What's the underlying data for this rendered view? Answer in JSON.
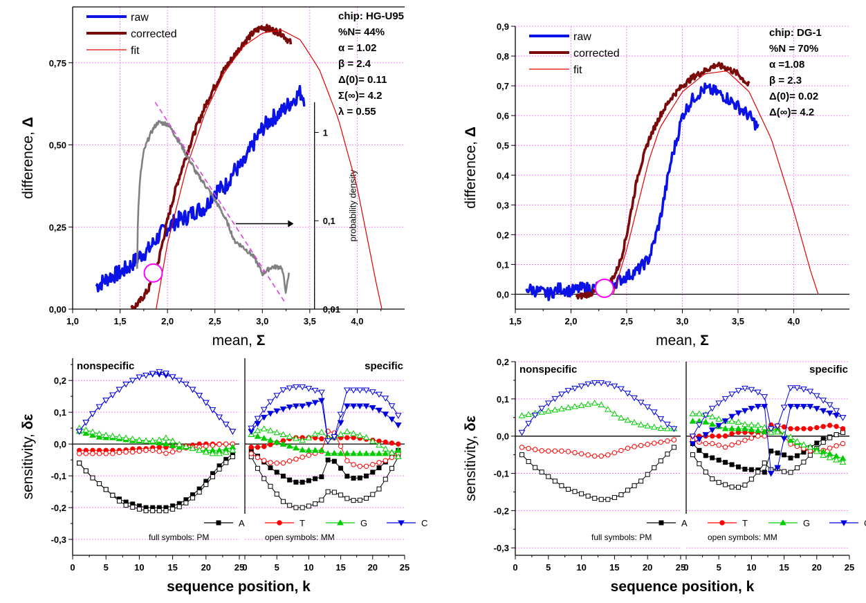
{
  "chart_data": [
    {
      "id": "p1",
      "type": "line",
      "xlabel": "mean, ",
      "xlabel_sym": "Σ",
      "ylabel": "difference, ",
      "ylabel_sym": "Δ",
      "y2label": "probability density",
      "xlim": [
        1.0,
        4.5
      ],
      "ylim": [
        0.0,
        0.92
      ],
      "xticks": [
        "1,0",
        "1,5",
        "2,0",
        "2,5",
        "3,0",
        "3,5",
        "4,0"
      ],
      "xtick_vals": [
        1.0,
        1.5,
        2.0,
        2.5,
        3.0,
        3.5,
        4.0
      ],
      "yticks": [
        "0,00",
        "0,25",
        "0,50",
        "0,75"
      ],
      "ytick_vals": [
        0.0,
        0.25,
        0.5,
        0.75
      ],
      "y2ticks": [
        "0,01",
        "0,1",
        "1"
      ],
      "y2tick_vals": [
        0.01,
        0.1,
        1
      ],
      "y2log": true,
      "y2lim": [
        0.01,
        2.2
      ],
      "annotation": [
        "chip: HG-U95",
        "%N= 44%",
        "α    = 1.02",
        "β    = 2.4",
        "Δ(0)= 0.11",
        "Σ(∞)= 4.2",
        "λ    = 0.55"
      ],
      "legend": [
        "raw",
        "corrected",
        "fit"
      ],
      "colors": {
        "raw": "#0a12e6",
        "corrected": "#7a0a0a",
        "fit": "#e00000",
        "density": "#808080",
        "tangent": "#e040e0",
        "circle": "#ff00ff"
      },
      "series": [
        {
          "name": "raw",
          "x": [
            1.25,
            1.4,
            1.5,
            1.6,
            1.7,
            1.8,
            1.9,
            2.0,
            2.1,
            2.2,
            2.3,
            2.4,
            2.5,
            2.6,
            2.7,
            2.8,
            2.9,
            3.0,
            3.1,
            3.2,
            3.3,
            3.4,
            3.45
          ],
          "y": [
            0.07,
            0.1,
            0.11,
            0.13,
            0.16,
            0.18,
            0.22,
            0.25,
            0.27,
            0.28,
            0.3,
            0.31,
            0.36,
            0.37,
            0.42,
            0.44,
            0.5,
            0.55,
            0.58,
            0.6,
            0.63,
            0.66,
            0.64
          ],
          "noise": 0.025
        },
        {
          "name": "corrected",
          "x": [
            1.62,
            1.7,
            1.8,
            1.9,
            2.0,
            2.1,
            2.2,
            2.3,
            2.4,
            2.5,
            2.6,
            2.7,
            2.8,
            2.9,
            3.0,
            3.1,
            3.2,
            3.3
          ],
          "y": [
            0.0,
            0.02,
            0.06,
            0.14,
            0.27,
            0.38,
            0.47,
            0.55,
            0.62,
            0.68,
            0.73,
            0.77,
            0.81,
            0.84,
            0.86,
            0.85,
            0.84,
            0.81
          ],
          "noise": 0.01
        },
        {
          "name": "fit",
          "x": [
            1.88,
            2.0,
            2.2,
            2.4,
            2.6,
            2.8,
            3.0,
            3.2,
            3.4,
            3.6,
            3.8,
            4.0,
            4.2,
            4.26
          ],
          "y": [
            0.0,
            0.2,
            0.43,
            0.6,
            0.72,
            0.8,
            0.84,
            0.85,
            0.82,
            0.73,
            0.58,
            0.37,
            0.08,
            0.0
          ],
          "noise": 0
        },
        {
          "name": "probability density",
          "x": [
            1.68,
            1.75,
            1.85,
            1.9,
            2.0,
            2.1,
            2.2,
            2.3,
            2.4,
            2.5,
            2.6,
            2.7,
            2.8,
            2.9,
            3.0,
            3.1,
            3.2,
            3.25,
            3.28
          ],
          "y": [
            0.03,
            0.6,
            1.1,
            1.3,
            1.25,
            0.85,
            0.55,
            0.35,
            0.25,
            0.17,
            0.11,
            0.06,
            0.05,
            0.04,
            0.025,
            0.03,
            0.03,
            0.015,
            0.025
          ],
          "axis": "y2",
          "noise": 0.06
        }
      ]
    },
    {
      "id": "p2",
      "type": "line",
      "xlabel": "mean, ",
      "xlabel_sym": "Σ",
      "ylabel": "difference, ",
      "ylabel_sym": "Δ",
      "xlim": [
        1.5,
        4.5
      ],
      "ylim": [
        -0.05,
        0.9
      ],
      "xticks": [
        "1,5",
        "2,0",
        "2,5",
        "3,0",
        "3,5",
        "4,0"
      ],
      "xtick_vals": [
        1.5,
        2.0,
        2.5,
        3.0,
        3.5,
        4.0
      ],
      "yticks": [
        "0,0",
        "0,1",
        "0,2",
        "0,3",
        "0,4",
        "0,5",
        "0,6",
        "0,7",
        "0,8",
        "0,9"
      ],
      "ytick_vals": [
        0,
        0.1,
        0.2,
        0.3,
        0.4,
        0.5,
        0.6,
        0.7,
        0.8,
        0.9
      ],
      "annotation": [
        "chip: DG-1",
        "%N = 70%",
        "α      =1.08",
        "β      = 2.3",
        "Δ(0)= 0.02",
        "Δ(∞)= 4.2"
      ],
      "legend": [
        "raw",
        "corrected",
        "fit"
      ],
      "series": [
        {
          "name": "raw",
          "x": [
            1.6,
            1.7,
            1.8,
            1.9,
            2.0,
            2.1,
            2.2,
            2.3,
            2.4,
            2.5,
            2.6,
            2.7,
            2.75,
            2.8,
            2.85,
            2.9,
            2.95,
            3.0,
            3.1,
            3.2,
            3.3,
            3.4,
            3.5,
            3.6,
            3.68
          ],
          "y": [
            0.02,
            0.01,
            0.0,
            0.02,
            0.01,
            0.02,
            0.02,
            0.03,
            0.04,
            0.06,
            0.08,
            0.12,
            0.18,
            0.25,
            0.35,
            0.45,
            0.52,
            0.6,
            0.66,
            0.69,
            0.68,
            0.66,
            0.63,
            0.6,
            0.56
          ],
          "noise": 0.02
        },
        {
          "name": "corrected",
          "x": [
            2.05,
            2.15,
            2.25,
            2.35,
            2.4,
            2.45,
            2.5,
            2.55,
            2.6,
            2.7,
            2.8,
            2.9,
            3.0,
            3.1,
            3.2,
            3.3,
            3.4,
            3.5,
            3.6
          ],
          "y": [
            -0.01,
            0.0,
            0.01,
            0.04,
            0.07,
            0.12,
            0.2,
            0.3,
            0.4,
            0.52,
            0.6,
            0.66,
            0.7,
            0.73,
            0.75,
            0.77,
            0.76,
            0.74,
            0.7
          ],
          "noise": 0.01
        },
        {
          "name": "fit",
          "x": [
            2.38,
            2.5,
            2.6,
            2.7,
            2.8,
            3.0,
            3.2,
            3.4,
            3.6,
            3.8,
            4.0,
            4.15,
            4.22
          ],
          "y": [
            0.0,
            0.15,
            0.3,
            0.45,
            0.56,
            0.68,
            0.74,
            0.75,
            0.68,
            0.52,
            0.28,
            0.08,
            0.0
          ],
          "noise": 0
        }
      ]
    },
    {
      "id": "p3",
      "type": "line",
      "ylabel": "sensitivity, ",
      "ylabel_sym": "δε",
      "xlabel": "sequence position, k",
      "xlim": [
        0,
        25
      ],
      "ylim": [
        -0.35,
        0.27
      ],
      "xticks": [
        "0",
        "5",
        "10",
        "15",
        "20",
        "25"
      ],
      "xtick_vals": [
        0,
        5,
        10,
        15,
        20,
        25
      ],
      "yticks": [
        "-0,3",
        "-0,2",
        "-0,1",
        "0,0",
        "0,1",
        "0,2"
      ],
      "ytick_vals": [
        -0.3,
        -0.2,
        -0.1,
        0,
        0.1,
        0.2
      ],
      "panel_titles": [
        "nonspecific",
        "specific"
      ],
      "legend": [
        "A",
        "T",
        "G",
        "C"
      ],
      "notes": [
        "full symbols: PM",
        "open symbols: MM"
      ],
      "colors": {
        "A": "#000000",
        "T": "#ff0000",
        "G": "#00cc00",
        "C": "#0000dd"
      },
      "nonspecific": {
        "A_PM": [
          -0.06,
          -0.1,
          -0.13,
          -0.16,
          -0.18,
          -0.19,
          -0.2,
          -0.2,
          -0.2,
          -0.19,
          -0.17,
          -0.14,
          -0.1,
          -0.06,
          -0.03
        ],
        "A_MM": [
          -0.06,
          -0.1,
          -0.13,
          -0.16,
          -0.19,
          -0.2,
          -0.21,
          -0.21,
          -0.21,
          -0.2,
          -0.18,
          -0.15,
          -0.11,
          -0.07,
          -0.04
        ],
        "T_PM": [
          -0.02,
          -0.02,
          -0.02,
          -0.02,
          -0.02,
          -0.015,
          -0.015,
          -0.01,
          -0.01,
          -0.005,
          -0.005,
          0.0,
          0.0,
          0.0,
          0.0
        ],
        "T_MM": [
          -0.03,
          -0.03,
          -0.03,
          -0.03,
          -0.025,
          -0.025,
          -0.02,
          -0.02,
          -0.03,
          -0.02,
          -0.01,
          -0.01,
          -0.005,
          0.0,
          0.0
        ],
        "G_PM": [
          0.04,
          0.03,
          0.02,
          0.02,
          0.015,
          0.01,
          0.01,
          0.005,
          0.0,
          -0.01,
          -0.01,
          -0.02,
          -0.02,
          -0.02,
          -0.01
        ],
        "G_MM": [
          0.05,
          0.04,
          0.03,
          0.025,
          0.02,
          0.015,
          0.01,
          0.01,
          0.02,
          0.0,
          -0.01,
          -0.02,
          -0.03,
          -0.03,
          -0.02
        ],
        "C_PM": [
          0.04,
          0.09,
          0.13,
          0.16,
          0.19,
          0.21,
          0.22,
          0.22,
          0.21,
          0.19,
          0.16,
          0.12,
          0.08,
          0.04
        ],
        "C_MM": [
          0.04,
          0.09,
          0.13,
          0.16,
          0.19,
          0.21,
          0.22,
          0.23,
          0.21,
          0.19,
          0.16,
          0.12,
          0.08,
          0.04
        ]
      },
      "specific": {
        "A_PM": [
          -0.02,
          -0.05,
          -0.08,
          -0.1,
          -0.12,
          -0.12,
          -0.11,
          -0.1,
          -0.05,
          -0.1,
          -0.11,
          -0.1,
          -0.08,
          -0.05,
          -0.02
        ],
        "A_MM": [
          -0.04,
          -0.1,
          -0.14,
          -0.18,
          -0.2,
          -0.2,
          -0.19,
          -0.17,
          -0.15,
          -0.17,
          -0.18,
          -0.17,
          -0.15,
          -0.1,
          -0.04
        ],
        "T_PM": [
          -0.01,
          -0.01,
          0.0,
          0.01,
          0.02,
          0.02,
          0.02,
          0.015,
          0.02,
          0.02,
          0.02,
          0.015,
          0.01,
          0.005,
          0.0
        ],
        "T_MM": [
          -0.03,
          -0.05,
          -0.06,
          -0.06,
          -0.05,
          -0.04,
          -0.03,
          -0.02,
          0.04,
          -0.05,
          -0.07,
          -0.07,
          -0.06,
          -0.05,
          -0.03
        ],
        "G_PM": [
          0.03,
          0.02,
          0.01,
          0.0,
          -0.01,
          -0.02,
          -0.02,
          -0.02,
          -0.03,
          -0.03,
          -0.03,
          -0.03,
          -0.03,
          -0.03,
          -0.02
        ],
        "G_MM": [
          0.03,
          0.05,
          0.04,
          0.03,
          0.02,
          0.01,
          0.03,
          0.04,
          0.02,
          0.04,
          0.03,
          0.02,
          0.0,
          -0.02,
          -0.04
        ],
        "C_PM": [
          0.04,
          0.08,
          0.1,
          0.11,
          0.12,
          0.12,
          0.13,
          0.14,
          0.01,
          0.12,
          0.12,
          0.12,
          0.11,
          0.09,
          0.06
        ],
        "C_MM": [
          0.05,
          0.1,
          0.14,
          0.17,
          0.18,
          0.18,
          0.17,
          0.16,
          0.01,
          0.17,
          0.17,
          0.17,
          0.16,
          0.14,
          0.09
        ]
      }
    },
    {
      "id": "p4",
      "type": "line",
      "ylabel": "sensitivity, ",
      "ylabel_sym": "δε",
      "xlabel": "sequence position, k",
      "xlim": [
        0,
        25
      ],
      "ylim": [
        -0.32,
        0.2
      ],
      "xticks": [
        "0",
        "5",
        "10",
        "15",
        "20",
        "25"
      ],
      "xtick_vals": [
        0,
        5,
        10,
        15,
        20,
        25
      ],
      "yticks": [
        "-0,3",
        "-0,2",
        "-0,1",
        "0,0",
        "0,1",
        "0,2"
      ],
      "ytick_vals": [
        -0.3,
        -0.2,
        -0.1,
        0,
        0.1,
        0.2
      ],
      "panel_titles": [
        "nonspecific",
        "specific"
      ],
      "legend": [
        "A",
        "T",
        "G",
        "C"
      ],
      "notes": [
        "full symbols: PM",
        "open symbols: MM"
      ],
      "nonspecific": {
        "A_MM": [
          -0.05,
          -0.08,
          -0.1,
          -0.12,
          -0.14,
          -0.15,
          -0.16,
          -0.17,
          -0.17,
          -0.16,
          -0.14,
          -0.12,
          -0.09,
          -0.06,
          -0.03
        ],
        "T_MM": [
          -0.03,
          -0.035,
          -0.04,
          -0.04,
          -0.04,
          -0.045,
          -0.05,
          -0.055,
          -0.05,
          -0.04,
          -0.03,
          -0.025,
          -0.02,
          -0.015,
          -0.01
        ],
        "G_MM": [
          0.055,
          0.06,
          0.065,
          0.07,
          0.075,
          0.08,
          0.085,
          0.09,
          0.07,
          0.05,
          0.04,
          0.03,
          0.025,
          0.02,
          0.02
        ],
        "C_MM": [
          0.01,
          0.05,
          0.08,
          0.1,
          0.12,
          0.13,
          0.14,
          0.145,
          0.14,
          0.13,
          0.11,
          0.09,
          0.07,
          0.04,
          0.02
        ]
      },
      "specific": {
        "A_PM": [
          -0.02,
          -0.05,
          -0.06,
          -0.07,
          -0.08,
          -0.09,
          -0.09,
          -0.1,
          -0.04,
          -0.06,
          -0.05,
          -0.03,
          -0.01,
          0.0,
          0.01
        ],
        "A_MM": [
          -0.05,
          -0.09,
          -0.12,
          -0.13,
          -0.14,
          -0.13,
          -0.1,
          -0.06,
          -0.09,
          -0.1,
          -0.08,
          -0.05,
          -0.02,
          0.0,
          0.01
        ],
        "T_PM": [
          0.0,
          0.0,
          0.0,
          0.0,
          0.01,
          0.01,
          0.01,
          0.01,
          0.03,
          0.02,
          0.02,
          0.02,
          0.025,
          0.03,
          0.02
        ],
        "T_MM": [
          -0.01,
          -0.02,
          -0.02,
          -0.03,
          -0.02,
          -0.01,
          0.0,
          0.0,
          0.02,
          -0.02,
          -0.03,
          -0.04,
          -0.04,
          -0.03,
          -0.02
        ],
        "G_PM": [
          0.04,
          0.04,
          0.03,
          0.02,
          0.02,
          0.02,
          0.015,
          0.01,
          0.02,
          -0.01,
          -0.02,
          -0.03,
          -0.04,
          -0.05,
          -0.06
        ],
        "G_MM": [
          0.06,
          0.06,
          0.05,
          0.04,
          0.04,
          0.03,
          0.03,
          0.02,
          0.01,
          0.0,
          -0.02,
          -0.03,
          -0.05,
          -0.06,
          -0.07
        ],
        "C_PM": [
          -0.02,
          0.0,
          0.02,
          0.04,
          0.06,
          0.07,
          0.08,
          0.08,
          -0.1,
          0.08,
          0.08,
          0.08,
          0.07,
          0.06,
          0.05
        ],
        "C_MM": [
          0.0,
          0.05,
          0.08,
          0.1,
          0.12,
          0.13,
          0.12,
          0.1,
          0.02,
          0.13,
          0.13,
          0.12,
          0.1,
          0.08,
          0.05
        ]
      }
    }
  ]
}
